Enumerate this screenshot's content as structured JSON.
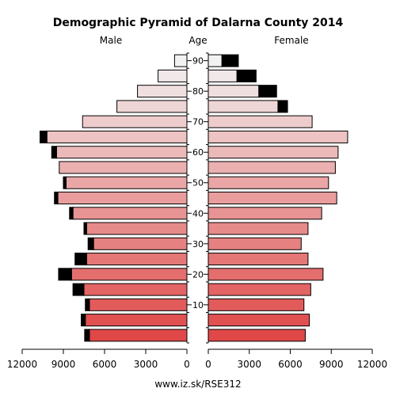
{
  "chart_data": {
    "type": "bar",
    "subtype": "population-pyramid",
    "title": "Demographic Pyramid of Dalarna County 2014",
    "left_label": "Male",
    "center_label": "Age",
    "right_label": "Female",
    "source": "www.iz.sk/RSE312",
    "age_ticks": [
      "10",
      "20",
      "30",
      "40",
      "50",
      "60",
      "70",
      "80",
      "90"
    ],
    "x_ticks_left": [
      "12000",
      "9000",
      "6000",
      "3000",
      "0"
    ],
    "x_ticks_right": [
      "0",
      "3000",
      "6000",
      "9000",
      "12000"
    ],
    "xlim": [
      0,
      12000
    ],
    "age_groups": [
      "0-4",
      "5-9",
      "10-14",
      "15-19",
      "20-24",
      "25-29",
      "30-34",
      "35-39",
      "40-44",
      "45-49",
      "50-54",
      "55-59",
      "60-64",
      "65-69",
      "70-74",
      "75-79",
      "80-84",
      "85-89",
      "90+"
    ],
    "series": [
      {
        "name": "male_base",
        "values": [
          7100,
          7400,
          7100,
          7500,
          8400,
          7300,
          6800,
          7300,
          8300,
          9400,
          8800,
          9300,
          9500,
          10200,
          7600,
          5100,
          3600,
          2100,
          900
        ]
      },
      {
        "name": "male_excess",
        "values": [
          350,
          300,
          300,
          800,
          950,
          850,
          400,
          200,
          250,
          250,
          200,
          0,
          350,
          500,
          0,
          0,
          0,
          0,
          0
        ]
      },
      {
        "name": "female_base",
        "values": [
          7100,
          7400,
          7000,
          7500,
          8400,
          7300,
          6800,
          7300,
          8300,
          9400,
          8800,
          9300,
          9500,
          10200,
          7600,
          5100,
          3700,
          2100,
          1000
        ]
      },
      {
        "name": "female_excess",
        "values": [
          0,
          0,
          0,
          0,
          0,
          0,
          0,
          0,
          0,
          0,
          0,
          0,
          0,
          0,
          0,
          700,
          1300,
          1400,
          1200
        ]
      }
    ],
    "colors": {
      "bottom": "#e04848",
      "top": "#f2f2f2",
      "excess": "#000000"
    }
  }
}
